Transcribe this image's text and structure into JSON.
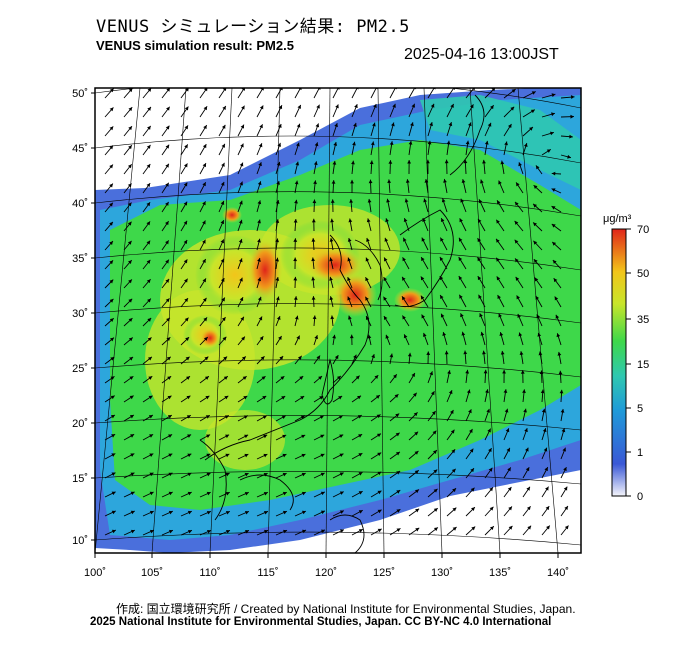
{
  "header": {
    "title_ja": "VENUS シミュレーション結果: PM2.5",
    "title_en": "VENUS simulation result: PM2.5",
    "timestamp": "2025-04-16 13:00JST"
  },
  "map": {
    "lat_labels": [
      "50˚",
      "45˚",
      "40˚",
      "35˚",
      "30˚",
      "25˚",
      "20˚",
      "15˚",
      "10˚"
    ],
    "lon_labels": [
      "100˚",
      "105˚",
      "110˚",
      "115˚",
      "120˚",
      "125˚",
      "130˚",
      "135˚",
      "140˚"
    ]
  },
  "colorbar": {
    "unit": "μg/m³",
    "ticks": [
      "70",
      "50",
      "35",
      "15",
      "5",
      "1",
      "0"
    ],
    "colors": [
      "#f5f5fb",
      "#3a58d6",
      "#1f9ad8",
      "#2fc8b0",
      "#3ed84a",
      "#c8e52a",
      "#f2c51a",
      "#e0251a"
    ]
  },
  "footer": {
    "credit": "作成: 国立環境研究所 / Created by National Institute for Environmental Studies, Japan.",
    "copyright": "2025 National Institute for Environmental Studies, Japan. CC BY-NC 4.0 International"
  }
}
